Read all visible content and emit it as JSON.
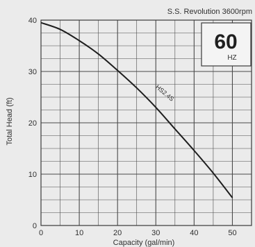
{
  "header": {
    "revolution_text": "S.S. Revolution 3600rpm",
    "frequency_value": "60",
    "frequency_unit": "HZ"
  },
  "chart_data": {
    "type": "line",
    "xlabel": "Capacity (gal/min)",
    "ylabel": "Total Head (ft)",
    "xlim": [
      0,
      55
    ],
    "ylim": [
      0,
      40
    ],
    "x_ticks": [
      0,
      10,
      20,
      30,
      40,
      50
    ],
    "y_ticks": [
      0,
      10,
      20,
      30,
      40
    ],
    "grid": true,
    "series": [
      {
        "name": "HS2.4S",
        "x": [
          0,
          5,
          10,
          15,
          20,
          25,
          30,
          35,
          40,
          45,
          50
        ],
        "y": [
          39.5,
          38.2,
          36.0,
          33.4,
          30.2,
          26.8,
          23.0,
          18.8,
          14.6,
          10.2,
          5.4
        ],
        "color": "#1e1e1e"
      }
    ]
  }
}
